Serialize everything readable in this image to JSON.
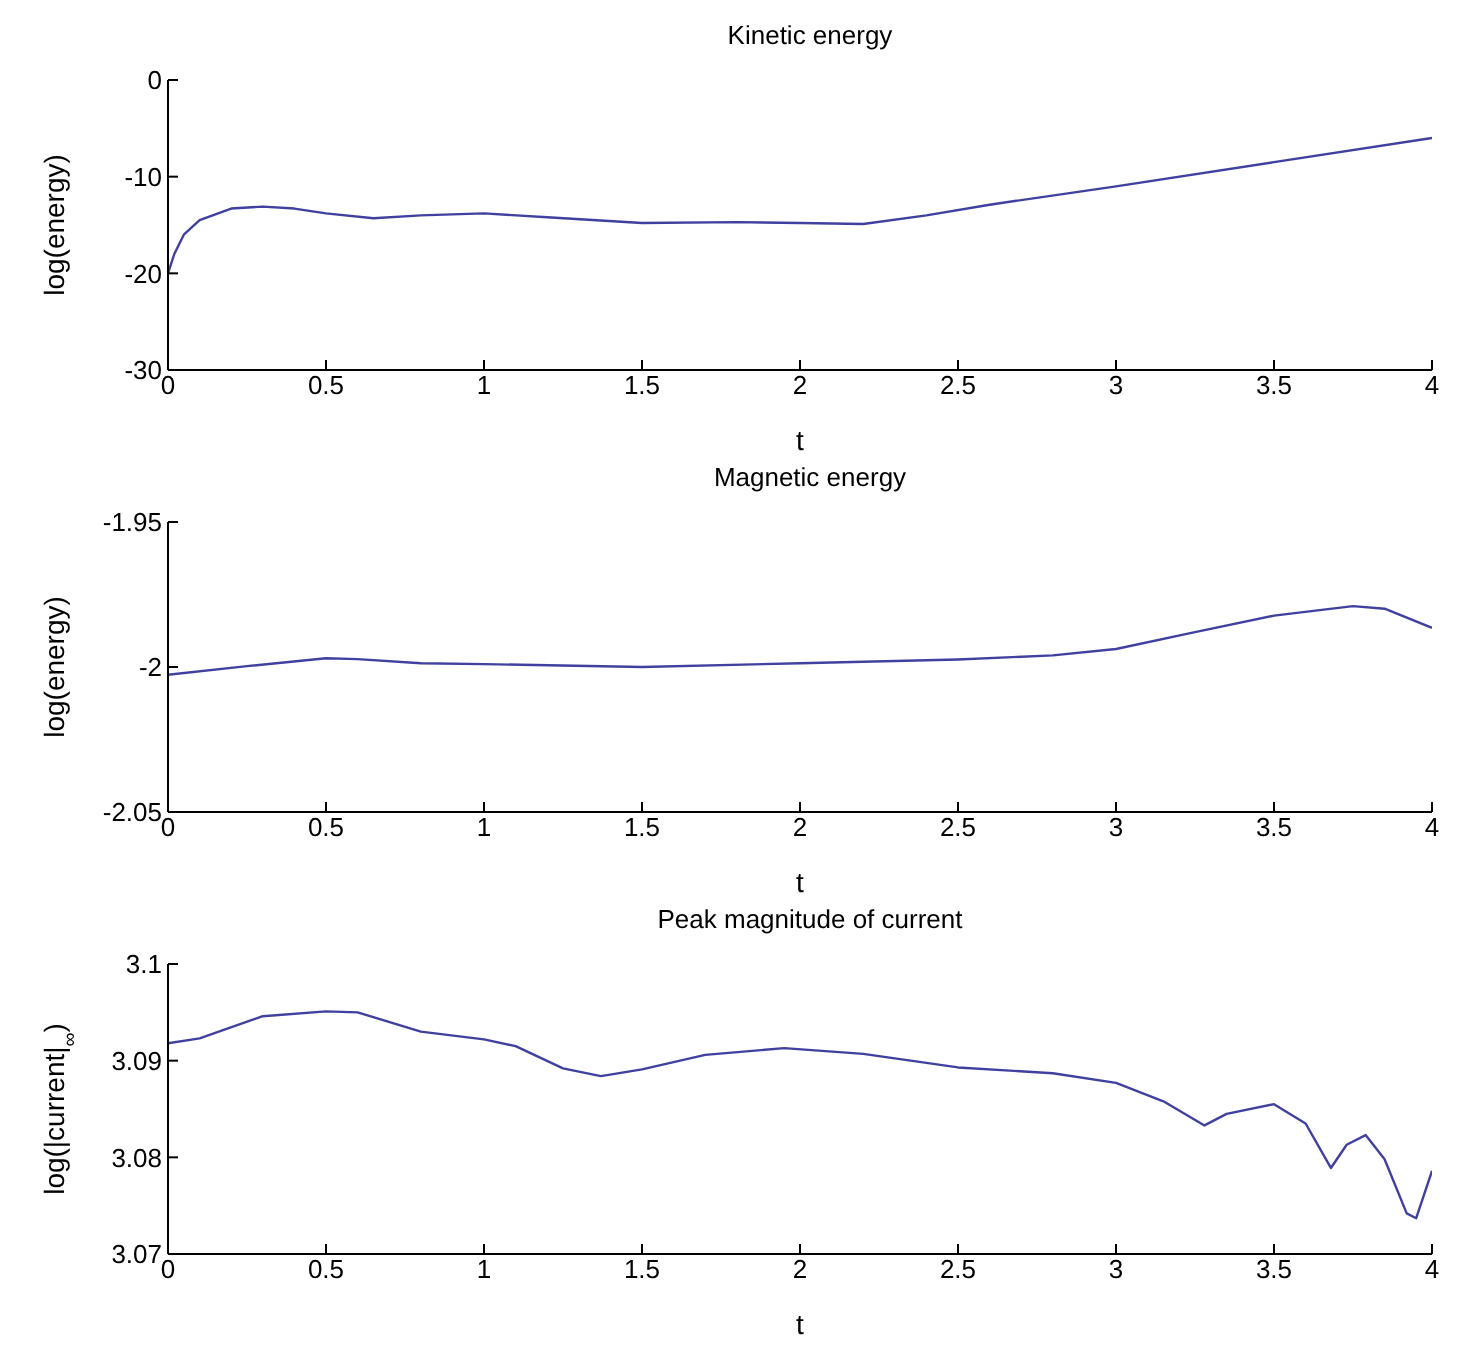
{
  "chart_data": [
    {
      "type": "line",
      "title": "Kinetic energy",
      "xlabel": "t",
      "ylabel": "log(energy)",
      "xlim": [
        0,
        4
      ],
      "xticks": [
        0,
        0.5,
        1,
        1.5,
        2,
        2.5,
        3,
        3.5,
        4
      ],
      "ylim": [
        -30,
        0
      ],
      "yticks": [
        -30,
        -20,
        -10,
        0
      ],
      "x": [
        0,
        0.02,
        0.05,
        0.1,
        0.2,
        0.3,
        0.4,
        0.5,
        0.65,
        0.8,
        1.0,
        1.2,
        1.5,
        1.8,
        2.0,
        2.2,
        2.4,
        2.6,
        3.0,
        3.5,
        4.0
      ],
      "series": [
        {
          "color": "#4040a0",
          "values": [
            -20,
            -18,
            -16,
            -14.5,
            -13.3,
            -13.1,
            -13.3,
            -13.8,
            -14.3,
            -14.0,
            -13.8,
            -14.2,
            -14.8,
            -14.7,
            -14.8,
            -14.9,
            -14.0,
            -12.9,
            -11.0,
            -8.5,
            -6.0
          ]
        }
      ]
    },
    {
      "type": "line",
      "title": "Magnetic energy",
      "xlabel": "t",
      "ylabel": "log(energy)",
      "xlim": [
        0,
        4
      ],
      "xticks": [
        0,
        0.5,
        1,
        1.5,
        2,
        2.5,
        3,
        3.5,
        4
      ],
      "ylim": [
        -2.05,
        -1.95
      ],
      "yticks": [
        -2.05,
        -2,
        -1.95
      ],
      "x": [
        0,
        0.25,
        0.5,
        0.6,
        0.8,
        1.0,
        1.5,
        2.0,
        2.5,
        2.8,
        3.0,
        3.25,
        3.5,
        3.75,
        3.85,
        4.0
      ],
      "series": [
        {
          "color": "#4040a0",
          "values": [
            -2.0027,
            -1.9997,
            -1.997,
            -1.9973,
            -1.9987,
            -1.999,
            -2.0,
            -1.9987,
            -1.9974,
            -1.996,
            -1.9938,
            -1.988,
            -1.9823,
            -1.979,
            -1.9799,
            -1.9865
          ]
        }
      ]
    },
    {
      "type": "line",
      "title": "Peak magnitude of current",
      "xlabel": "t",
      "ylabel": "log(|current|$_{∞}$)",
      "xlim": [
        0,
        4
      ],
      "xticks": [
        0,
        0.5,
        1,
        1.5,
        2,
        2.5,
        3,
        3.5,
        4
      ],
      "ylim": [
        3.07,
        3.1
      ],
      "yticks": [
        3.07,
        3.08,
        3.09,
        3.1
      ],
      "x": [
        0,
        0.1,
        0.3,
        0.5,
        0.6,
        0.8,
        1.0,
        1.1,
        1.25,
        1.37,
        1.5,
        1.7,
        1.95,
        2.2,
        2.5,
        2.8,
        3.0,
        3.15,
        3.28,
        3.35,
        3.5,
        3.6,
        3.68,
        3.73,
        3.79,
        3.85,
        3.92,
        3.95,
        4.0
      ],
      "series": [
        {
          "color": "#4040a0",
          "values": [
            3.0918,
            3.0923,
            3.0946,
            3.0951,
            3.095,
            3.093,
            3.0922,
            3.0915,
            3.0892,
            3.0884,
            3.0891,
            3.0906,
            3.0913,
            3.0907,
            3.0893,
            3.0887,
            3.0877,
            3.0858,
            3.0833,
            3.0845,
            3.0855,
            3.0835,
            3.0789,
            3.0813,
            3.0823,
            3.0798,
            3.0742,
            3.0737,
            3.0786
          ]
        }
      ]
    }
  ]
}
